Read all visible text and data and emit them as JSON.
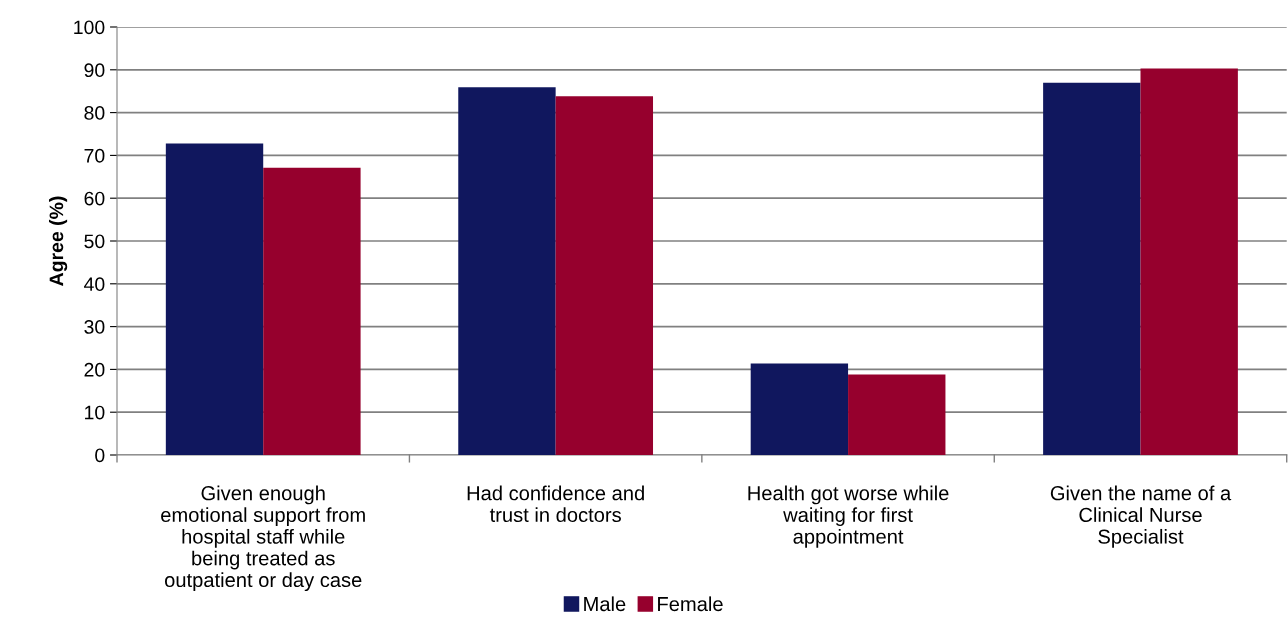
{
  "chart_data": {
    "type": "bar",
    "ylabel": "Agree (%)",
    "categories": [
      "Given enough\nemotional support from\nhospital staff while\nbeing treated as\noutpatient or day case",
      "Had confidence and\ntrust in doctors",
      "Health got worse while\nwaiting for first\nappointment",
      "Given the name of a\nClinical Nurse\nSpecialist"
    ],
    "series": [
      {
        "name": "Male",
        "color": "#10175e",
        "values": [
          72.8,
          85.9,
          21.4,
          87.0
        ]
      },
      {
        "name": "Female",
        "color": "#96002d",
        "values": [
          67.1,
          83.8,
          18.8,
          90.3
        ]
      }
    ],
    "ylim": [
      0,
      100
    ],
    "yticks": [
      0,
      10,
      20,
      30,
      40,
      50,
      60,
      70,
      80,
      90,
      100
    ],
    "grid": "y",
    "legend": "bottom"
  }
}
